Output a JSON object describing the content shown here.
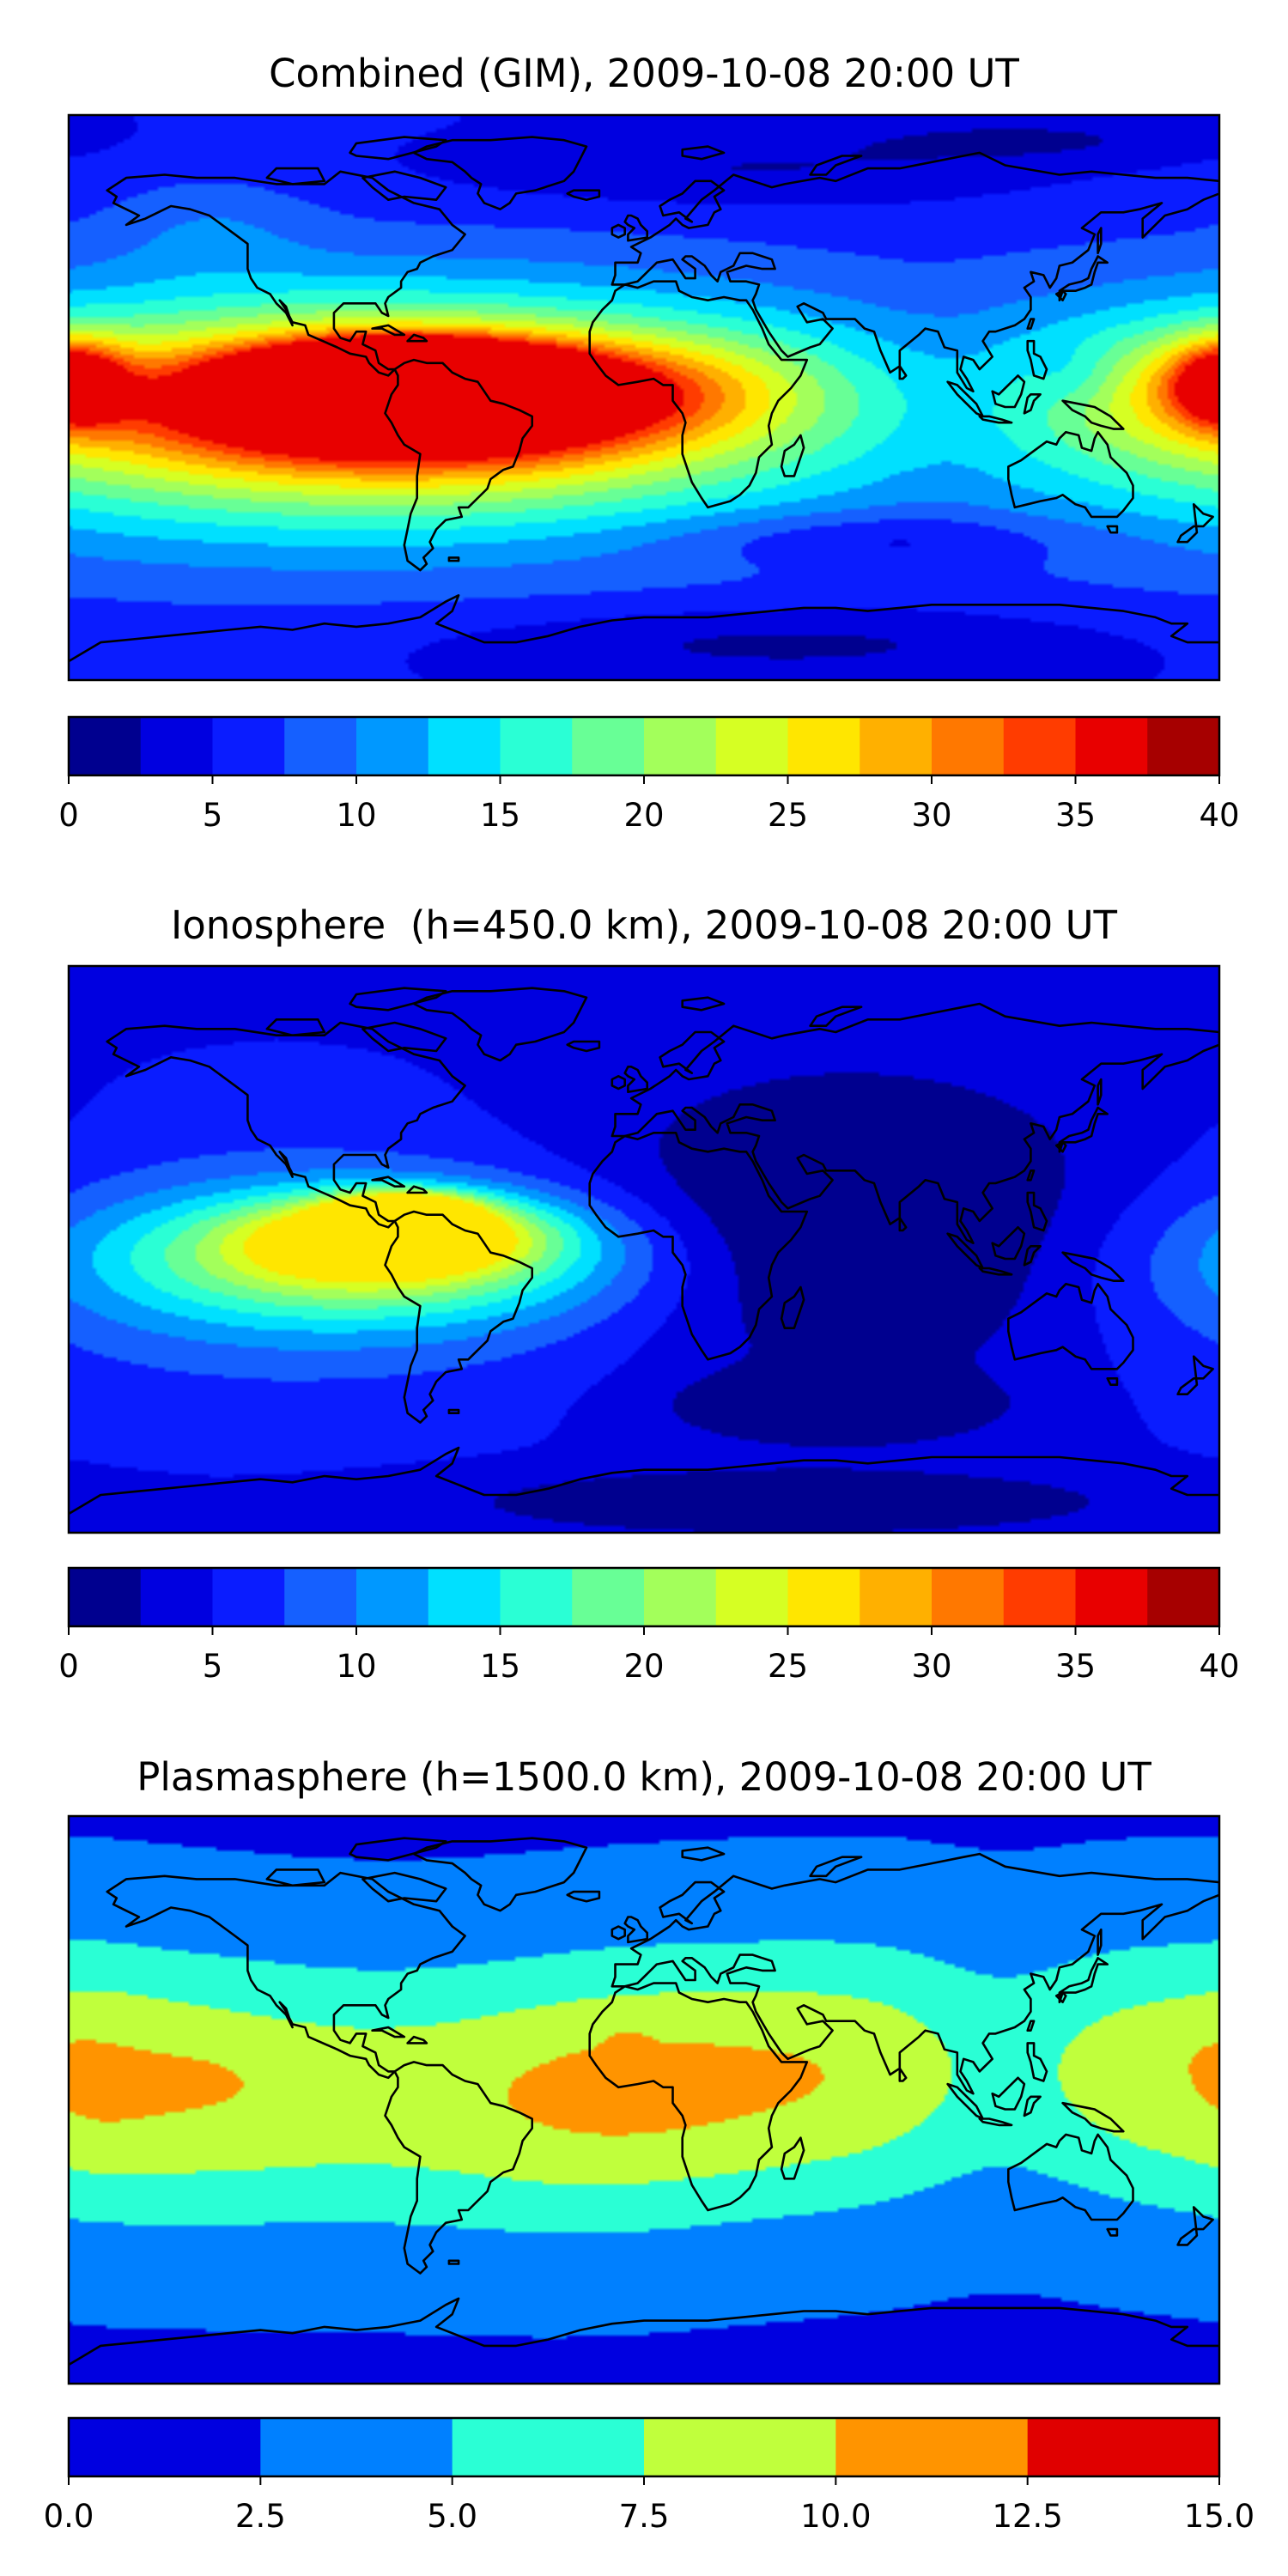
{
  "figure": {
    "background": "#ffffff",
    "coastline_color": "#000000"
  },
  "chart_data": [
    {
      "type": "heatmap",
      "title": "Combined (GIM), 2009-10-08 20:00 UT",
      "projection": "equirectangular, longitude -180 to 180, latitude -90 to 90",
      "x_range": [
        -180,
        180
      ],
      "y_range": [
        -90,
        90
      ],
      "colorbar": {
        "levels": [
          0,
          2.5,
          5,
          7.5,
          10,
          12.5,
          15,
          17.5,
          20,
          22.5,
          25,
          27.5,
          30,
          32.5,
          35,
          37.5,
          40
        ],
        "colors": [
          "#00008f",
          "#0000e0",
          "#0a1cff",
          "#1560ff",
          "#0098ff",
          "#00e0ff",
          "#2affd5",
          "#68ff96",
          "#a3ff5b",
          "#d6ff23",
          "#ffe600",
          "#ffb000",
          "#ff7800",
          "#ff3c00",
          "#e80000",
          "#a60000"
        ],
        "ticks": [
          0,
          5,
          10,
          15,
          20,
          25,
          30,
          35,
          40
        ],
        "tick_labels": [
          "0",
          "5",
          "10",
          "15",
          "20",
          "25",
          "30",
          "35",
          "40"
        ]
      },
      "background_value": 6.2,
      "features": [
        {
          "lon": -75,
          "lat": 10,
          "value": 36.5,
          "sx": 14,
          "sy": 4
        },
        {
          "lon": -62,
          "lat": 5,
          "value": 33.5,
          "sx": 28,
          "sy": 7
        },
        {
          "lon": -88,
          "lat": 6,
          "value": 31.0,
          "sx": 22,
          "sy": 6
        },
        {
          "lon": -68,
          "lat": 0,
          "value": 28.5,
          "sx": 45,
          "sy": 11
        },
        {
          "lon": -75,
          "lat": -2,
          "value": 24.0,
          "sx": 75,
          "sy": 18
        },
        {
          "lon": -85,
          "lat": -5,
          "value": 17.5,
          "sx": 115,
          "sy": 26
        },
        {
          "lon": -100,
          "lat": -8,
          "value": 12.0,
          "sx": 140,
          "sy": 34
        },
        {
          "lon": 180,
          "lat": 5,
          "value": 15.5,
          "sx": 12,
          "sy": 9
        },
        {
          "lon": -178,
          "lat": 5,
          "value": 15.5,
          "sx": 10,
          "sy": 9
        },
        {
          "lon": 165,
          "lat": 3,
          "value": 11.0,
          "sx": 26,
          "sy": 14
        },
        {
          "lon": 20,
          "lat": 5,
          "value": 9.5,
          "sx": 28,
          "sy": 12
        },
        {
          "lon": 135,
          "lat": 7,
          "value": 3.2,
          "sx": 10,
          "sy": 7
        },
        {
          "lon": 30,
          "lat": 72,
          "value": 3.0,
          "sx": 65,
          "sy": 8
        },
        {
          "lon": 120,
          "lat": 82,
          "value": 3.2,
          "sx": 40,
          "sy": 5
        },
        {
          "lon": 70,
          "lat": -45,
          "value": 2.5,
          "sx": 45,
          "sy": 6
        },
        {
          "lon": 40,
          "lat": -78,
          "value": 2.5,
          "sx": 70,
          "sy": 8
        },
        {
          "lon": -135,
          "lat": 55,
          "value": 9.0,
          "sx": 22,
          "sy": 12
        }
      ],
      "max_value": 37
    },
    {
      "type": "heatmap",
      "title": "Ionosphere  (h=450.0 km), 2009-10-08 20:00 UT",
      "projection": "equirectangular, longitude -180 to 180, latitude -90 to 90",
      "x_range": [
        -180,
        180
      ],
      "y_range": [
        -90,
        90
      ],
      "colorbar": {
        "levels": [
          0,
          2.5,
          5,
          7.5,
          10,
          12.5,
          15,
          17.5,
          20,
          22.5,
          25,
          27.5,
          30,
          32.5,
          35,
          37.5,
          40
        ],
        "colors": [
          "#00008f",
          "#0000e0",
          "#0a1cff",
          "#1560ff",
          "#0098ff",
          "#00e0ff",
          "#2affd5",
          "#68ff96",
          "#a3ff5b",
          "#d6ff23",
          "#ffe600",
          "#ffb000",
          "#ff7800",
          "#ff3c00",
          "#e80000",
          "#a60000"
        ],
        "ticks": [
          0,
          5,
          10,
          15,
          20,
          25,
          30,
          35,
          40
        ],
        "tick_labels": [
          "0",
          "5",
          "10",
          "15",
          "20",
          "25",
          "30",
          "35",
          "40"
        ]
      },
      "background_value": 5.6,
      "features": [
        {
          "lon": -75,
          "lat": 12,
          "value": 26.0,
          "sx": 14,
          "sy": 4
        },
        {
          "lon": -75,
          "lat": 5,
          "value": 22.0,
          "sx": 30,
          "sy": 8
        },
        {
          "lon": -85,
          "lat": -2,
          "value": 18.0,
          "sx": 50,
          "sy": 13
        },
        {
          "lon": -95,
          "lat": -5,
          "value": 12.5,
          "sx": 80,
          "sy": 20
        },
        {
          "lon": -120,
          "lat": -10,
          "value": 7.0,
          "sx": 120,
          "sy": 32
        },
        {
          "lon": 65,
          "lat": 5,
          "value": -2.7,
          "sx": 65,
          "sy": 34
        },
        {
          "lon": 60,
          "lat": -50,
          "value": -2.0,
          "sx": 30,
          "sy": 7
        },
        {
          "lon": 45,
          "lat": -80,
          "value": -1.5,
          "sx": 60,
          "sy": 6
        }
      ],
      "max_value": 27
    },
    {
      "type": "heatmap",
      "title": "Plasmasphere (h=1500.0 km), 2009-10-08 20:00 UT",
      "projection": "equirectangular, longitude -180 to 180, latitude -90 to 90",
      "x_range": [
        -180,
        180
      ],
      "y_range": [
        -90,
        90
      ],
      "colorbar": {
        "levels": [
          0.0,
          2.5,
          5.0,
          7.5,
          10.0,
          12.5,
          15.0
        ],
        "colors": [
          "#0000e0",
          "#0080ff",
          "#2affd5",
          "#c0ff3c",
          "#ff9400",
          "#e00000"
        ],
        "ticks": [
          0.0,
          2.5,
          5.0,
          7.5,
          10.0,
          12.5,
          15.0
        ],
        "tick_labels": [
          "0.0",
          "2.5",
          "5.0",
          "7.5",
          "10.0",
          "12.5",
          "15.0"
        ]
      },
      "band": {
        "center_lat_base": 5,
        "center_lat_amp": 4,
        "peak_value": 9.3,
        "width_deg": 30,
        "modulation": [
          {
            "lon": 15,
            "sx": 45,
            "value": 1.2
          },
          {
            "lon": -155,
            "sx": 30,
            "value": 0.9
          },
          {
            "lon": -172,
            "sx": 12,
            "value": 0.6
          },
          {
            "lon": -15,
            "sx": 25,
            "value": 0.6
          },
          {
            "lon": 112,
            "sx": 22,
            "value": -2.6
          },
          {
            "lon": -85,
            "sx": 30,
            "value": -0.4
          }
        ]
      },
      "floor_value": 2.2,
      "features": [
        {
          "lon": -150,
          "lat": 6,
          "value": 1.9,
          "sx": 13,
          "sy": 4
        },
        {
          "lon": -178,
          "lat": 12,
          "value": 1.9,
          "sx": 5,
          "sy": 3
        },
        {
          "lon": -5,
          "lat": 17,
          "value": 1.7,
          "sx": 4,
          "sy": 3
        },
        {
          "lon": 12,
          "lat": 0,
          "value": 1.5,
          "sx": 4,
          "sy": 2.5
        }
      ],
      "max_value": 11
    }
  ]
}
